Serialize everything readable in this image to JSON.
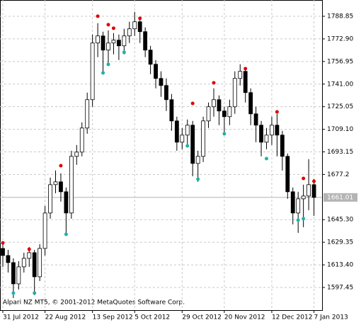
{
  "chart_data": {
    "type": "candlestick",
    "watermark": "Alpari NZ MT5, © 2001-2012 MetaQuotes Software Corp.",
    "categories": [
      "31 Jul 2012",
      null,
      null,
      null,
      null,
      null,
      null,
      null,
      "22 Aug 2012",
      null,
      null,
      null,
      null,
      null,
      null,
      null,
      null,
      "13 Sep 2012",
      null,
      null,
      null,
      null,
      null,
      null,
      null,
      "5 Oct 2012",
      null,
      null,
      null,
      null,
      null,
      null,
      null,
      null,
      "29 Oct 2012",
      null,
      null,
      null,
      null,
      null,
      null,
      null,
      "20 Nov 2012",
      null,
      null,
      null,
      null,
      null,
      null,
      null,
      null,
      "12 Dec 2012",
      null,
      null,
      null,
      null,
      null,
      null,
      null,
      "7 Jan 2013"
    ],
    "open": [
      1625,
      1620,
      1615,
      1600,
      1612,
      1618,
      1622,
      1605,
      1625,
      1650,
      1670,
      1672,
      1665,
      1650,
      1690,
      1693,
      1710,
      1730,
      1770,
      1775,
      1765,
      1770,
      1772,
      1768,
      1775,
      1780,
      1785,
      1778,
      1765,
      1755,
      1745,
      1740,
      1730,
      1715,
      1700,
      1705,
      1712,
      1685,
      1690,
      1715,
      1725,
      1730,
      1722,
      1718,
      1725,
      1745,
      1750,
      1735,
      1720,
      1712,
      1700,
      1705,
      1712,
      1705,
      1690,
      1665,
      1650,
      1660,
      1662,
      1670
    ],
    "high": [
      1630,
      1624,
      1618,
      1616,
      1622,
      1626,
      1624,
      1628,
      1655,
      1675,
      1680,
      1678,
      1668,
      1694,
      1698,
      1714,
      1735,
      1776,
      1784,
      1778,
      1779,
      1777,
      1776,
      1780,
      1785,
      1792,
      1788,
      1781,
      1768,
      1758,
      1750,
      1745,
      1734,
      1718,
      1710,
      1716,
      1715,
      1694,
      1718,
      1728,
      1738,
      1733,
      1725,
      1730,
      1750,
      1755,
      1752,
      1738,
      1725,
      1715,
      1710,
      1718,
      1720,
      1708,
      1692,
      1668,
      1665,
      1670,
      1688,
      1674
    ],
    "low": [
      1612,
      1608,
      1590,
      1596,
      1608,
      1612,
      1592,
      1602,
      1620,
      1646,
      1664,
      1658,
      1635,
      1646,
      1684,
      1690,
      1706,
      1725,
      1760,
      1750,
      1755,
      1762,
      1758,
      1762,
      1770,
      1775,
      1770,
      1760,
      1748,
      1738,
      1732,
      1722,
      1708,
      1694,
      1695,
      1698,
      1676,
      1672,
      1686,
      1710,
      1718,
      1712,
      1705,
      1712,
      1720,
      1740,
      1728,
      1712,
      1700,
      1690,
      1695,
      1698,
      1690,
      1680,
      1660,
      1642,
      1636,
      1640,
      1652,
      1648
    ],
    "close": [
      1620,
      1615,
      1600,
      1612,
      1618,
      1622,
      1605,
      1625,
      1650,
      1670,
      1672,
      1665,
      1650,
      1690,
      1693,
      1710,
      1730,
      1770,
      1775,
      1765,
      1770,
      1772,
      1768,
      1775,
      1780,
      1785,
      1778,
      1765,
      1755,
      1745,
      1740,
      1730,
      1715,
      1700,
      1705,
      1712,
      1685,
      1690,
      1715,
      1725,
      1730,
      1722,
      1718,
      1725,
      1745,
      1750,
      1735,
      1720,
      1712,
      1700,
      1705,
      1712,
      1705,
      1690,
      1665,
      1650,
      1660,
      1662,
      1670,
      1661
    ],
    "series": [
      {
        "color": "#e00000",
        "values": [
          1628.9,
          null,
          null,
          null,
          null,
          1624.4,
          null,
          null,
          null,
          null,
          null,
          1683.4,
          null,
          null,
          null,
          null,
          null,
          null,
          1788.9,
          null,
          1782.9,
          1780.4,
          null,
          null,
          null,
          null,
          1787.4,
          null,
          null,
          null,
          null,
          null,
          null,
          null,
          null,
          null,
          1727.4,
          null,
          null,
          null,
          1741.9,
          null,
          null,
          null,
          null,
          null,
          1751.9,
          null,
          null,
          null,
          null,
          null,
          1721.4,
          null,
          null,
          null,
          null,
          1674.4,
          null,
          1672.4
        ]
      },
      {
        "color": "#20b2aa",
        "values": [
          null,
          null,
          1593.5,
          null,
          null,
          null,
          1593.5,
          null,
          null,
          null,
          null,
          null,
          1635.0,
          null,
          null,
          null,
          null,
          null,
          null,
          1748.9,
          1754.9,
          null,
          null,
          1763.4,
          null,
          null,
          null,
          null,
          null,
          null,
          null,
          null,
          null,
          null,
          null,
          1697.4,
          null,
          1673.9,
          null,
          null,
          null,
          null,
          1705.9,
          null,
          null,
          null,
          null,
          null,
          null,
          null,
          1688.4,
          null,
          null,
          null,
          null,
          null,
          1645.0,
          1646.0,
          null,
          null
        ]
      }
    ],
    "price_line": 1661.01,
    "ylim": [
      1581.45,
      1800.35
    ],
    "yticks": [
      1597.45,
      {
        "value": 1613.4,
        "label": "1613.40"
      },
      1629.35,
      {
        "value": 1645.3,
        "label": "1645.30"
      },
      1677.2,
      1693.15,
      {
        "value": 1709.1,
        "label": "1709.10"
      },
      1725.05,
      {
        "value": 1741.0,
        "label": "1741.00"
      },
      1756.95,
      {
        "value": 1772.9,
        "label": "1772.90"
      },
      1788.85
    ],
    "grid": true
  }
}
